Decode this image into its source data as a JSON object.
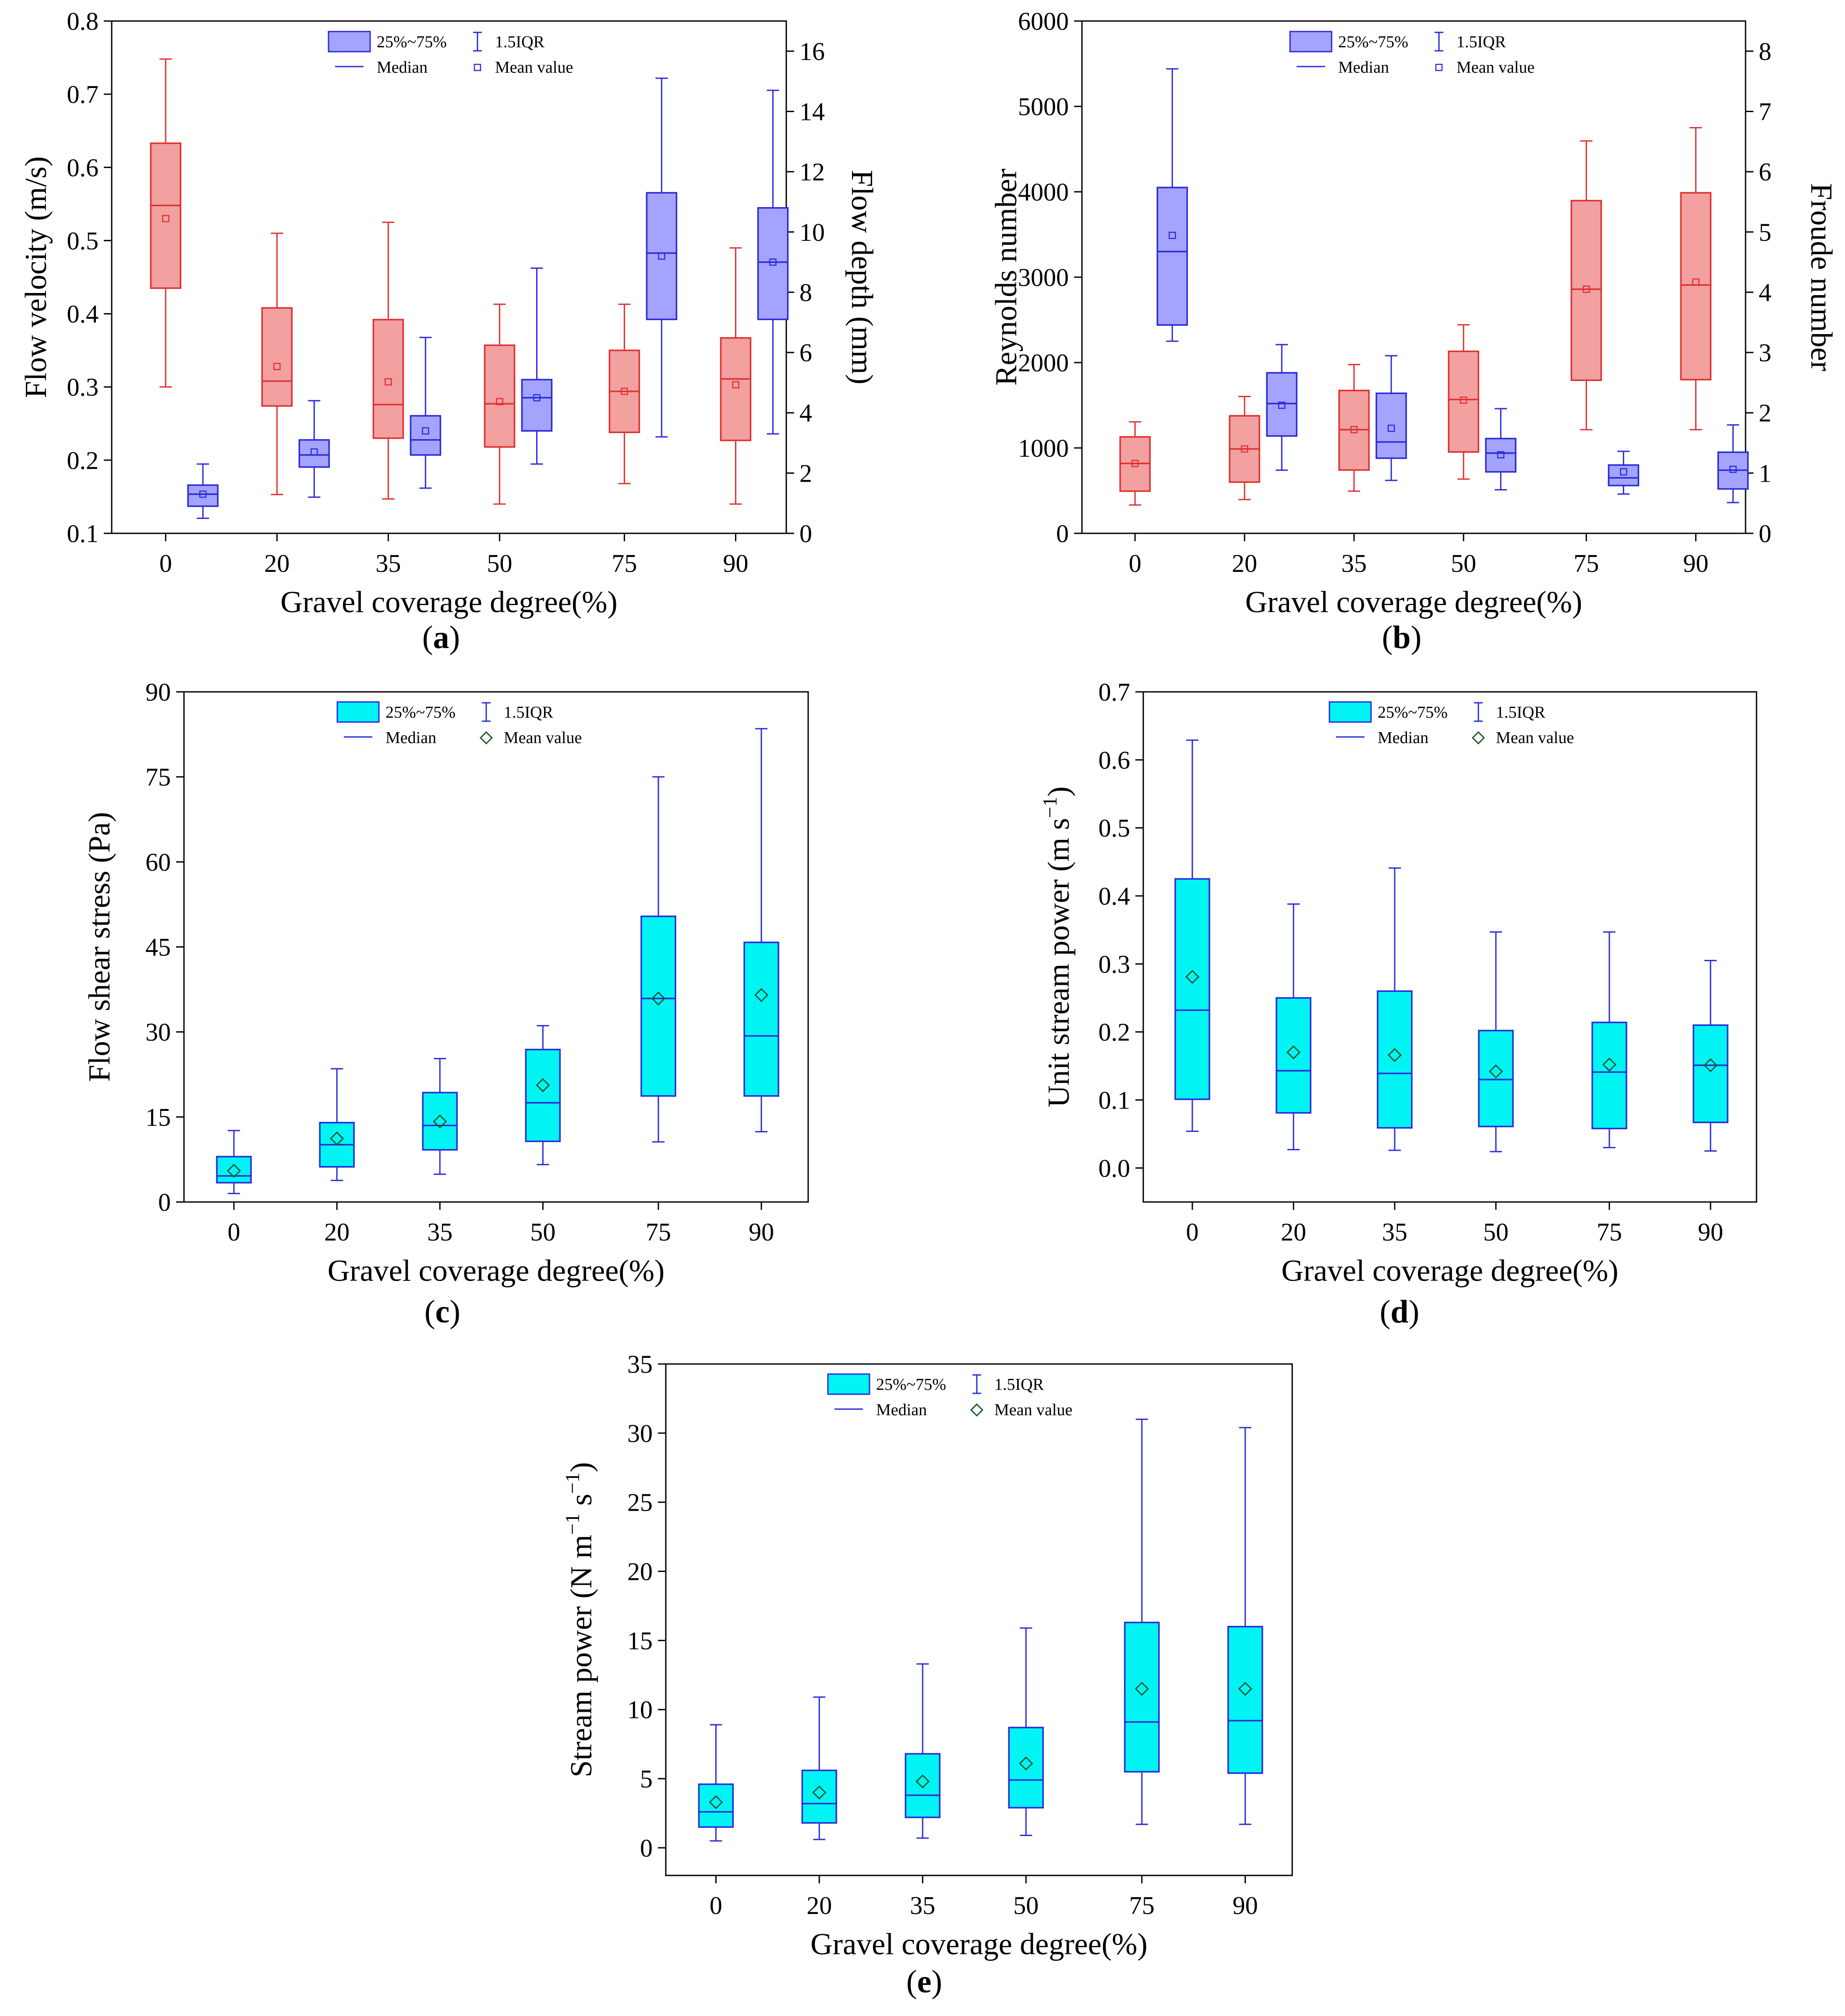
{
  "figure": {
    "categories": [
      "0",
      "20",
      "35",
      "50",
      "75",
      "90"
    ],
    "colors": {
      "red_fill": "#f2a0a0",
      "red_edge": "#e03030",
      "blue_fill": "#a4a4ff",
      "blue_edge": "#2b2bd9",
      "cyan_fill": "#00f4f4",
      "whisker": "#2b2bd9",
      "cyan_mean": "#1a5a2a"
    },
    "legend_labels": {
      "box": "25%~75%",
      "iqr": "1.5IQR",
      "median": "Median",
      "mean": "Mean value"
    }
  },
  "chart_data": [
    {
      "id": "a",
      "caption": "a",
      "type": "box",
      "xlabel": "Gravel coverage degree(%)",
      "ylabel_left": "Flow velocity (m/s)",
      "ylabel_right": "Flow depth (mm)",
      "ylim_left": [
        0.1,
        0.8
      ],
      "yticks_left": [
        "0.1",
        "0.2",
        "0.3",
        "0.4",
        "0.5",
        "0.6",
        "0.7",
        "0.8"
      ],
      "ylim_right": [
        0,
        17
      ],
      "yticks_right": [
        "0",
        "2",
        "4",
        "6",
        "8",
        "10",
        "12",
        "14",
        "16"
      ],
      "series": [
        {
          "name": "Flow velocity",
          "axis": "left",
          "color": "red",
          "boxes": [
            {
              "min": 0.3,
              "q1": 0.435,
              "median": 0.548,
              "q3": 0.633,
              "max": 0.748,
              "mean": 0.53
            },
            {
              "min": 0.153,
              "q1": 0.274,
              "median": 0.308,
              "q3": 0.408,
              "max": 0.51,
              "mean": 0.328
            },
            {
              "min": 0.147,
              "q1": 0.23,
              "median": 0.276,
              "q3": 0.392,
              "max": 0.525,
              "mean": 0.307
            },
            {
              "min": 0.14,
              "q1": 0.218,
              "median": 0.277,
              "q3": 0.357,
              "max": 0.413,
              "mean": 0.28
            },
            {
              "min": 0.168,
              "q1": 0.238,
              "median": 0.294,
              "q3": 0.35,
              "max": 0.413,
              "mean": 0.294
            },
            {
              "min": 0.14,
              "q1": 0.227,
              "median": 0.311,
              "q3": 0.367,
              "max": 0.49,
              "mean": 0.303
            }
          ]
        },
        {
          "name": "Flow depth",
          "axis": "right",
          "color": "blue",
          "boxes": [
            {
              "min": 0.5,
              "q1": 0.9,
              "median": 1.3,
              "q3": 1.6,
              "max": 2.3,
              "mean": 1.3
            },
            {
              "min": 1.2,
              "q1": 2.2,
              "median": 2.6,
              "q3": 3.1,
              "max": 4.4,
              "mean": 2.7
            },
            {
              "min": 1.5,
              "q1": 2.6,
              "median": 3.1,
              "q3": 3.9,
              "max": 6.5,
              "mean": 3.4
            },
            {
              "min": 2.3,
              "q1": 3.4,
              "median": 4.5,
              "q3": 5.1,
              "max": 8.8,
              "mean": 4.5
            },
            {
              "min": 3.2,
              "q1": 7.1,
              "median": 9.3,
              "q3": 11.3,
              "max": 15.1,
              "mean": 9.2
            },
            {
              "min": 3.3,
              "q1": 7.1,
              "median": 9.0,
              "q3": 10.8,
              "max": 14.7,
              "mean": 9.0
            }
          ]
        }
      ]
    },
    {
      "id": "b",
      "caption": "b",
      "type": "box",
      "xlabel": "Gravel coverage degree(%)",
      "ylabel_left": "Reynolds number",
      "ylabel_right": "Froude number",
      "ylim_left": [
        0,
        6000
      ],
      "yticks_left": [
        "0",
        "1000",
        "2000",
        "3000",
        "4000",
        "5000",
        "6000"
      ],
      "ylim_right": [
        0,
        8.5
      ],
      "yticks_right": [
        "0",
        "1",
        "2",
        "3",
        "4",
        "5",
        "6",
        "7",
        "8"
      ],
      "series": [
        {
          "name": "Reynolds number",
          "axis": "left",
          "color": "blue",
          "boxes": [
            {
              "min": 2250,
              "q1": 2440,
              "median": 3300,
              "q3": 4050,
              "max": 5440,
              "mean": 3490
            },
            {
              "min": 740,
              "q1": 1140,
              "median": 1520,
              "q3": 1880,
              "max": 2210,
              "mean": 1500
            },
            {
              "min": 620,
              "q1": 880,
              "median": 1070,
              "q3": 1640,
              "max": 2080,
              "mean": 1230
            },
            {
              "min": 510,
              "q1": 720,
              "median": 940,
              "q3": 1110,
              "max": 1460,
              "mean": 920
            },
            {
              "min": 460,
              "q1": 560,
              "median": 650,
              "q3": 800,
              "max": 960,
              "mean": 720
            },
            {
              "min": 360,
              "q1": 520,
              "median": 740,
              "q3": 950,
              "max": 1270,
              "mean": 750
            }
          ]
        },
        {
          "name": "Froude number",
          "axis": "right",
          "color": "red",
          "boxes": [
            {
              "min": 0.47,
              "q1": 0.7,
              "median": 1.16,
              "q3": 1.6,
              "max": 1.85,
              "mean": 1.16
            },
            {
              "min": 0.56,
              "q1": 0.85,
              "median": 1.4,
              "q3": 1.95,
              "max": 2.27,
              "mean": 1.4
            },
            {
              "min": 0.7,
              "q1": 1.05,
              "median": 1.72,
              "q3": 2.37,
              "max": 2.8,
              "mean": 1.72
            },
            {
              "min": 0.9,
              "q1": 1.35,
              "median": 2.22,
              "q3": 3.02,
              "max": 3.46,
              "mean": 2.21
            },
            {
              "min": 1.72,
              "q1": 2.54,
              "median": 4.05,
              "q3": 5.52,
              "max": 6.51,
              "mean": 4.05
            },
            {
              "min": 1.72,
              "q1": 2.55,
              "median": 4.12,
              "q3": 5.65,
              "max": 6.73,
              "mean": 4.17
            }
          ]
        }
      ]
    },
    {
      "id": "c",
      "caption": "c",
      "type": "box",
      "xlabel": "Gravel coverage degree(%)",
      "ylabel_left": "Flow shear stress (Pa)",
      "ylim_left": [
        0,
        90
      ],
      "yticks_left": [
        "0",
        "15",
        "30",
        "45",
        "60",
        "75",
        "90"
      ],
      "series": [
        {
          "name": "Flow shear stress",
          "axis": "left",
          "color": "cyan",
          "boxes": [
            {
              "min": 1.5,
              "q1": 3.4,
              "median": 4.6,
              "q3": 8.0,
              "max": 12.6,
              "mean": 5.5
            },
            {
              "min": 3.8,
              "q1": 6.2,
              "median": 10.1,
              "q3": 14.0,
              "max": 23.5,
              "mean": 11.2
            },
            {
              "min": 4.9,
              "q1": 9.2,
              "median": 13.5,
              "q3": 19.3,
              "max": 25.3,
              "mean": 14.2
            },
            {
              "min": 6.6,
              "q1": 10.7,
              "median": 17.5,
              "q3": 26.9,
              "max": 31.1,
              "mean": 20.6
            },
            {
              "min": 10.6,
              "q1": 18.7,
              "median": 35.9,
              "q3": 50.4,
              "max": 75.0,
              "mean": 35.9
            },
            {
              "min": 12.4,
              "q1": 18.7,
              "median": 29.3,
              "q3": 45.8,
              "max": 83.5,
              "mean": 36.5
            }
          ]
        }
      ]
    },
    {
      "id": "d",
      "caption": "d",
      "type": "box",
      "xlabel": "Gravel coverage degree(%)",
      "ylabel_main": "Unit stream power (m s",
      "ylabel_sup": "−1",
      "ylabel_end": ")",
      "ylim_left": [
        -0.05,
        0.7
      ],
      "yticks_left": [
        "0.0",
        "0.1",
        "0.2",
        "0.3",
        "0.4",
        "0.5",
        "0.6",
        "0.7"
      ],
      "series": [
        {
          "name": "Unit stream power",
          "axis": "left",
          "color": "cyan",
          "boxes": [
            {
              "min": 0.054,
              "q1": 0.101,
              "median": 0.232,
              "q3": 0.425,
              "max": 0.629,
              "mean": 0.281
            },
            {
              "min": 0.027,
              "q1": 0.081,
              "median": 0.143,
              "q3": 0.25,
              "max": 0.388,
              "mean": 0.17
            },
            {
              "min": 0.026,
              "q1": 0.059,
              "median": 0.139,
              "q3": 0.26,
              "max": 0.441,
              "mean": 0.166
            },
            {
              "min": 0.024,
              "q1": 0.061,
              "median": 0.13,
              "q3": 0.202,
              "max": 0.347,
              "mean": 0.142
            },
            {
              "min": 0.03,
              "q1": 0.058,
              "median": 0.141,
              "q3": 0.214,
              "max": 0.347,
              "mean": 0.152
            },
            {
              "min": 0.025,
              "q1": 0.067,
              "median": 0.151,
              "q3": 0.21,
              "max": 0.305,
              "mean": 0.151
            }
          ]
        }
      ]
    },
    {
      "id": "e",
      "caption": "e",
      "type": "box",
      "xlabel": "Gravel coverage degree(%)",
      "ylabel_main": "Stream power (N m",
      "ylabel_sup1": "−1",
      "ylabel_mid": " s",
      "ylabel_sup2": "−1",
      "ylabel_end": ")",
      "ylim_left": [
        -2,
        35
      ],
      "yticks_left": [
        "0",
        "5",
        "10",
        "15",
        "20",
        "25",
        "30",
        "35"
      ],
      "series": [
        {
          "name": "Stream power",
          "axis": "left",
          "color": "cyan",
          "boxes": [
            {
              "min": 0.5,
              "q1": 1.5,
              "median": 2.6,
              "q3": 4.6,
              "max": 8.9,
              "mean": 3.3
            },
            {
              "min": 0.6,
              "q1": 1.8,
              "median": 3.2,
              "q3": 5.6,
              "max": 10.9,
              "mean": 4.0
            },
            {
              "min": 0.7,
              "q1": 2.2,
              "median": 3.8,
              "q3": 6.8,
              "max": 13.3,
              "mean": 4.8
            },
            {
              "min": 0.9,
              "q1": 2.9,
              "median": 4.9,
              "q3": 8.7,
              "max": 15.9,
              "mean": 6.1
            },
            {
              "min": 1.7,
              "q1": 5.5,
              "median": 9.1,
              "q3": 16.3,
              "max": 31.0,
              "mean": 11.5
            },
            {
              "min": 1.7,
              "q1": 5.4,
              "median": 9.2,
              "q3": 16.0,
              "max": 30.4,
              "mean": 11.5
            }
          ]
        }
      ]
    }
  ]
}
